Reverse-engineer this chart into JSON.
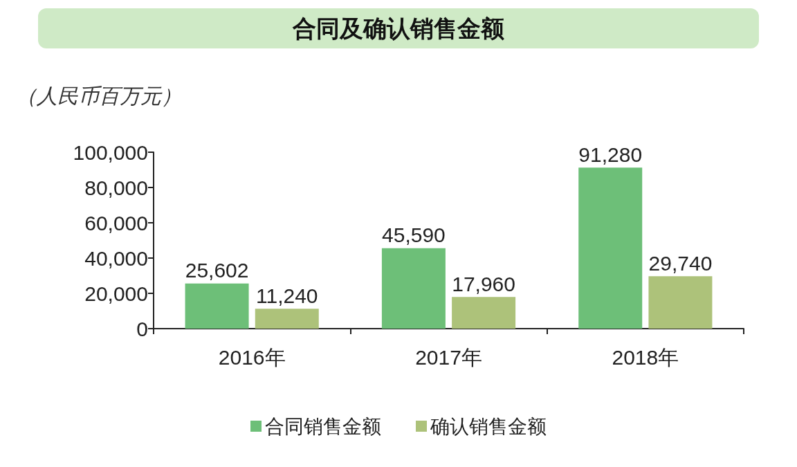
{
  "chart_data": {
    "type": "bar",
    "title": "合同及确认销售金额",
    "ylabel": "（人民币百万元）",
    "categories": [
      "2016年",
      "2017年",
      "2018年"
    ],
    "series": [
      {
        "name": "合同销售金额",
        "color": "#6dbf78",
        "values": [
          25602,
          45590,
          91280
        ],
        "value_labels": [
          "25,602",
          "45,590",
          "91,280"
        ]
      },
      {
        "name": "确认销售金额",
        "color": "#adc27a",
        "values": [
          11240,
          17960,
          29740
        ],
        "value_labels": [
          "11,240",
          "17,960",
          "29,740"
        ]
      }
    ],
    "ylim": [
      0,
      100000
    ],
    "yticks": [
      0,
      {
        "value": 20000,
        "label": "20,000"
      },
      {
        "value": 40000,
        "label": "40,000"
      },
      {
        "value": 60000,
        "label": "60,000"
      },
      {
        "value": 80000,
        "label": "80,000"
      },
      {
        "value": 100000,
        "label": "100,000"
      }
    ],
    "grid": false,
    "legend": "bottom"
  }
}
